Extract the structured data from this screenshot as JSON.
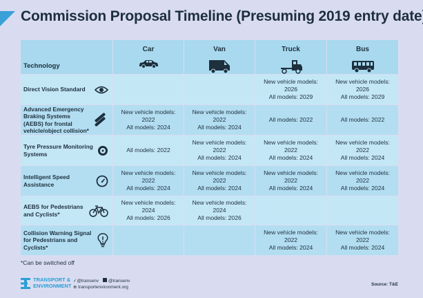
{
  "title": "Commission Proposal Timeline (Presuming 2019 entry date)",
  "table": {
    "header": {
      "technology": "Technology",
      "columns": [
        {
          "label": "Car",
          "icon": "car-icon"
        },
        {
          "label": "Van",
          "icon": "van-icon"
        },
        {
          "label": "Truck",
          "icon": "truck-icon"
        },
        {
          "label": "Bus",
          "icon": "bus-icon"
        }
      ]
    },
    "rows": [
      {
        "tech": "Direct Vision Standard",
        "icon": "eye-icon",
        "cells": [
          "",
          "",
          "New vehicle models: 2026\nAll models: 2029",
          "New vehicle models: 2026\nAll models: 2029"
        ]
      },
      {
        "tech": "Advanced Emergency Braking Systems (AEBS) for frontal vehicle/object collision*",
        "icon": "collision-icon",
        "cells": [
          "New vehicle models: 2022\nAll models: 2024",
          "New vehicle models: 2022\nAll models: 2024",
          "All models: 2022",
          "All models: 2022"
        ]
      },
      {
        "tech": "Tyre Pressure Monitoring Systems",
        "icon": "tyre-icon",
        "cells": [
          "All models: 2022",
          "New vehicle models: 2022\nAll models: 2024",
          "New vehicle models: 2022\nAll models: 2024",
          "New vehicle models: 2022\nAll models: 2024"
        ]
      },
      {
        "tech": "Intelligent Speed Assistance",
        "icon": "speedometer-icon",
        "cells": [
          "New vehicle models: 2022\nAll models: 2024",
          "New vehicle models: 2022\nAll models: 2024",
          "New vehicle models: 2022\nAll models: 2024",
          "New vehicle models: 2022\nAll models: 2024"
        ]
      },
      {
        "tech": "AEBS for Pedestrians and Cyclists*",
        "icon": "bicycle-icon",
        "cells": [
          "New vehicle models: 2024\nAll models: 2026",
          "New vehicle models: 2024\nAll models: 2026",
          "",
          ""
        ]
      },
      {
        "tech": "Collision Warning Signal for Pedestrians and Cyclists*",
        "icon": "lightbulb-icon",
        "cells": [
          "",
          "",
          "New vehicle models: 2022\nAll models: 2024",
          "New vehicle models: 2022\nAll models: 2024"
        ]
      }
    ]
  },
  "footnote": "*Can be switched off",
  "footer": {
    "logo_line1": "TRANSPORT &",
    "logo_line2": "ENVIRONMENT",
    "twitter": "@transenv",
    "facebook": "@transenv",
    "website": "transportenvironment.org",
    "source": "Source: T&E"
  },
  "colors": {
    "background": "#d9dcf1",
    "header": "#a8d9ee",
    "row_light": "#c4e7f6",
    "row_dark": "#b3def2",
    "accent": "#3aa0d8"
  }
}
